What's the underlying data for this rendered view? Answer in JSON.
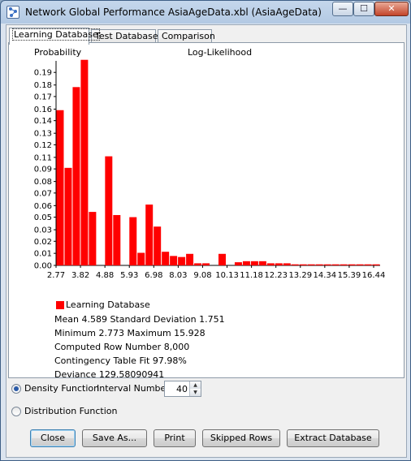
{
  "window": {
    "title": "Network Global Performance AsiaAgeData.xbl (AsiaAgeData)",
    "controls": {
      "minimize": "—",
      "maximize": "☐",
      "close": "✕"
    }
  },
  "tabs": [
    {
      "label": "Learning Database",
      "active": true
    },
    {
      "label": "Test Database",
      "active": false
    },
    {
      "label": "Comparison",
      "active": false
    }
  ],
  "chart_data": {
    "type": "bar",
    "title": "Log-Likelihood",
    "ylabel": "Probability",
    "ylim": [
      0,
      0.195
    ],
    "yticks": [
      "0.00",
      "0.01",
      "0.02",
      "0.03",
      "0.05",
      "0.06",
      "0.07",
      "0.08",
      "0.09",
      "0.11",
      "0.12",
      "0.13",
      "0.14",
      "0.16",
      "0.17",
      "0.18",
      "0.19"
    ],
    "ytick_values": [
      0.0,
      0.0115,
      0.023,
      0.034,
      0.046,
      0.057,
      0.069,
      0.08,
      0.092,
      0.103,
      0.115,
      0.126,
      0.138,
      0.149,
      0.161,
      0.172,
      0.184
    ],
    "xticks": [
      "2.77",
      "3.82",
      "4.88",
      "5.93",
      "6.98",
      "8.03",
      "9.08",
      "10.13",
      "11.18",
      "12.23",
      "13.29",
      "14.34",
      "15.39",
      "16.44"
    ],
    "bin_count": 40,
    "series": [
      {
        "name": "Learning Database",
        "color": "#ff0000",
        "values": [
          0.148,
          0.093,
          0.17,
          0.196,
          0.051,
          0.0,
          0.104,
          0.048,
          0.0,
          0.046,
          0.012,
          0.058,
          0.037,
          0.013,
          0.009,
          0.008,
          0.011,
          0.002,
          0.002,
          0.0,
          0.011,
          0.0,
          0.003,
          0.004,
          0.004,
          0.004,
          0.002,
          0.002,
          0.002,
          0.001,
          0.001,
          0.001,
          0.001,
          0.001,
          0.001,
          0.001,
          0.001,
          0.001,
          0.001,
          0.001
        ]
      }
    ]
  },
  "legend": {
    "label": "Learning Database",
    "color": "#ff0000"
  },
  "stats": [
    "Mean 4.589 Standard Deviation 1.751",
    "Minimum 2.773 Maximum 15.928",
    "Computed Row Number 8,000",
    "Contingency Table Fit 97.98%",
    "Deviance 129.58090941"
  ],
  "options": {
    "density_label": "Density Function",
    "density_selected": true,
    "interval_label": "Interval Number",
    "interval_value": "40",
    "distribution_label": "Distribution Function",
    "distribution_selected": false
  },
  "buttons": {
    "close": "Close",
    "save_as": "Save As...",
    "print": "Print",
    "skipped_rows": "Skipped Rows",
    "extract": "Extract Database"
  }
}
